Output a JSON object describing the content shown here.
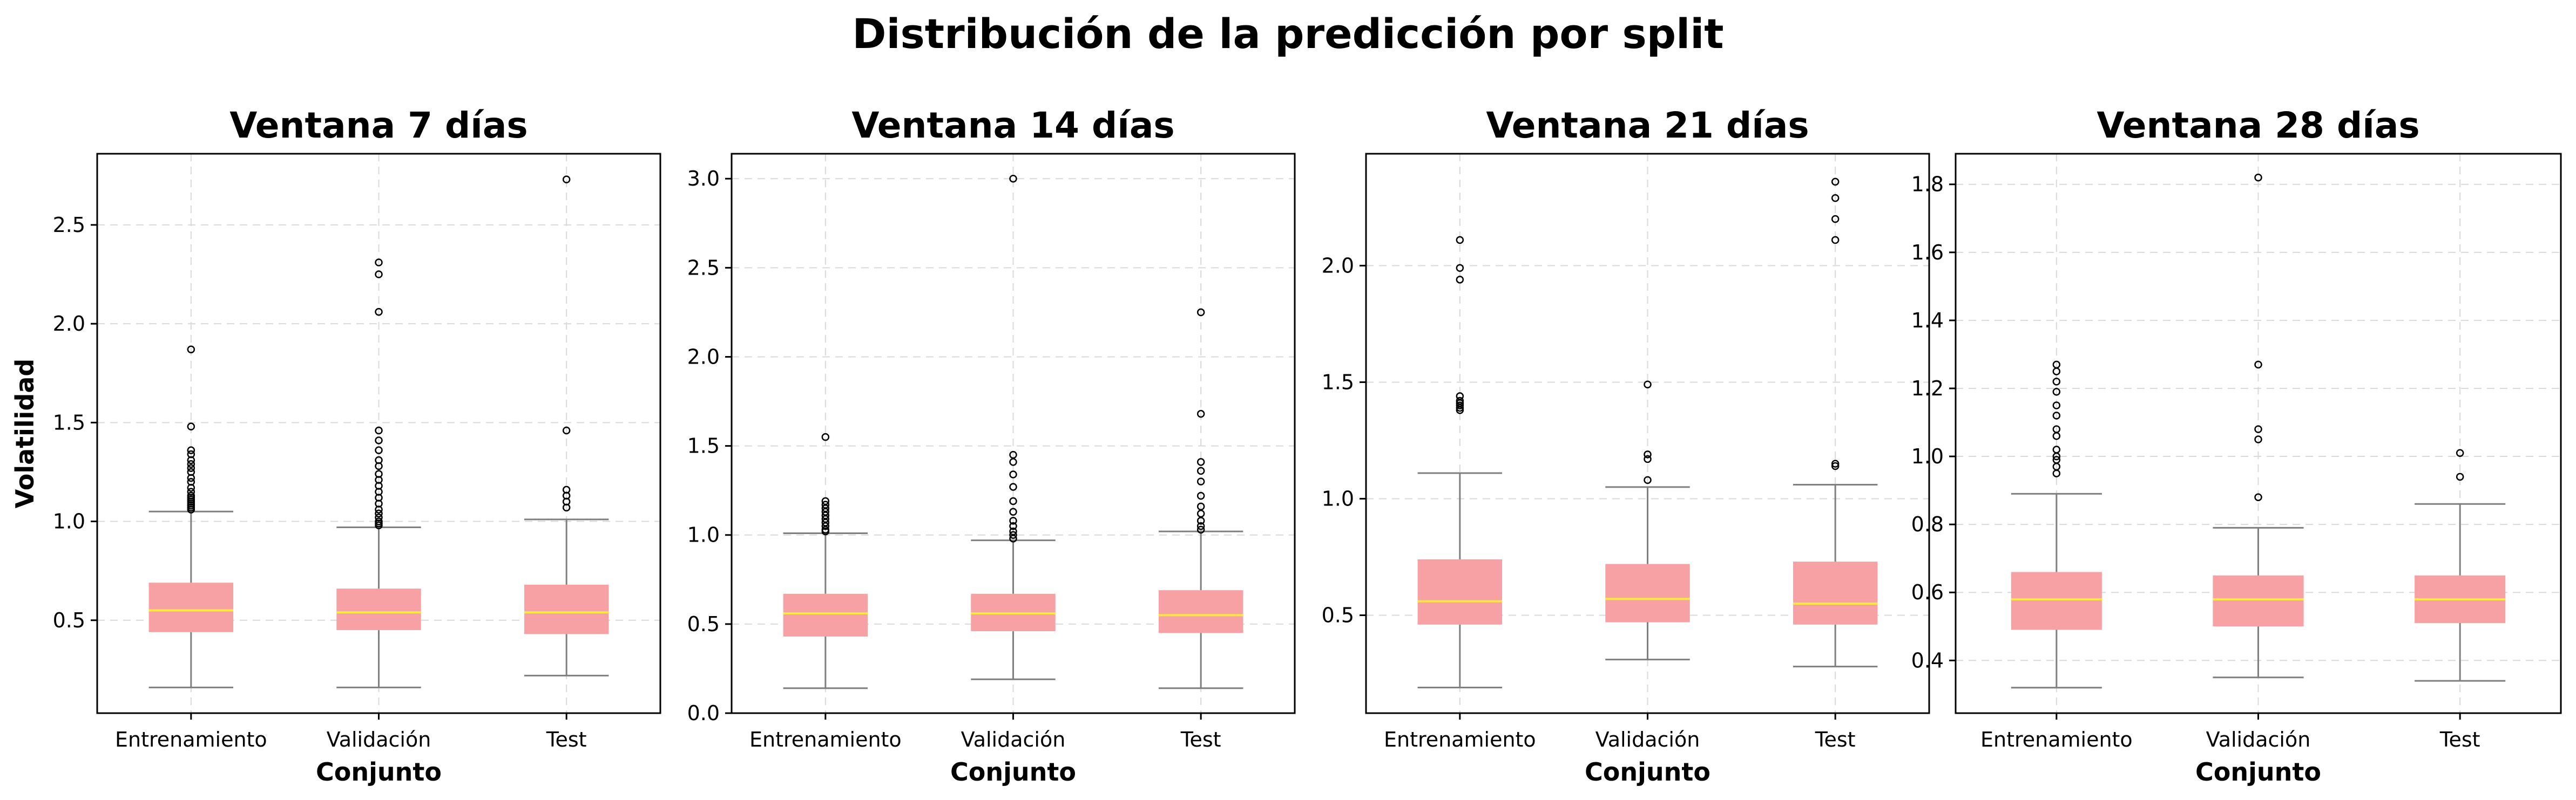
{
  "figure_title": "Distribución de la predicción por split",
  "chart_data": [
    {
      "type": "box",
      "title": "Ventana 7 días",
      "xlabel": "Conjunto",
      "ylabel": "Volatilidad",
      "categories": [
        "Entrenamiento",
        "Validación",
        "Test"
      ],
      "ylim": [
        0.03,
        2.86
      ],
      "yticks": [
        "0.5",
        "1.0",
        "1.5",
        "2.0",
        "2.5"
      ],
      "grid": true,
      "box_color": "#f7a1a4",
      "median_color": "#ffeb3b",
      "boxes": [
        {
          "whislo": 0.16,
          "q1": 0.44,
          "med": 0.55,
          "q3": 0.69,
          "whishi": 1.05,
          "fliers": [
            1.06,
            1.07,
            1.08,
            1.09,
            1.1,
            1.11,
            1.12,
            1.13,
            1.15,
            1.17,
            1.2,
            1.22,
            1.25,
            1.27,
            1.29,
            1.31,
            1.34,
            1.36,
            1.48,
            1.87
          ]
        },
        {
          "whislo": 0.16,
          "q1": 0.45,
          "med": 0.54,
          "q3": 0.66,
          "whishi": 0.97,
          "fliers": [
            0.98,
            0.99,
            1.0,
            1.02,
            1.04,
            1.06,
            1.09,
            1.12,
            1.15,
            1.18,
            1.21,
            1.24,
            1.28,
            1.31,
            1.36,
            1.41,
            1.46,
            2.06,
            2.25,
            2.31
          ]
        },
        {
          "whislo": 0.22,
          "q1": 0.43,
          "med": 0.54,
          "q3": 0.68,
          "whishi": 1.01,
          "fliers": [
            1.07,
            1.1,
            1.13,
            1.16,
            1.46,
            2.73
          ]
        }
      ]
    },
    {
      "type": "box",
      "title": "Ventana 14 días",
      "xlabel": "Conjunto",
      "ylabel": "",
      "categories": [
        "Entrenamiento",
        "Validación",
        "Test"
      ],
      "ylim": [
        0.0,
        3.14
      ],
      "yticks": [
        "0.0",
        "0.5",
        "1.0",
        "1.5",
        "2.0",
        "2.5",
        "3.0"
      ],
      "grid": true,
      "box_color": "#f7a1a4",
      "median_color": "#ffeb3b",
      "boxes": [
        {
          "whislo": 0.14,
          "q1": 0.43,
          "med": 0.56,
          "q3": 0.67,
          "whishi": 1.01,
          "fliers": [
            1.02,
            1.03,
            1.05,
            1.07,
            1.09,
            1.11,
            1.13,
            1.15,
            1.17,
            1.19,
            1.55
          ]
        },
        {
          "whislo": 0.19,
          "q1": 0.46,
          "med": 0.56,
          "q3": 0.67,
          "whishi": 0.97,
          "fliers": [
            0.98,
            1.0,
            1.02,
            1.05,
            1.08,
            1.13,
            1.19,
            1.27,
            1.34,
            1.41,
            1.45,
            3.0
          ]
        },
        {
          "whislo": 0.14,
          "q1": 0.45,
          "med": 0.55,
          "q3": 0.69,
          "whishi": 1.02,
          "fliers": [
            1.03,
            1.05,
            1.08,
            1.12,
            1.16,
            1.22,
            1.3,
            1.36,
            1.41,
            1.68,
            2.25
          ]
        }
      ]
    },
    {
      "type": "box",
      "title": "Ventana 21 días",
      "xlabel": "Conjunto",
      "ylabel": "",
      "categories": [
        "Entrenamiento",
        "Validación",
        "Test"
      ],
      "ylim": [
        0.08,
        2.48
      ],
      "yticks": [
        "0.5",
        "1.0",
        "1.5",
        "2.0"
      ],
      "grid": true,
      "box_color": "#f7a1a4",
      "median_color": "#ffeb3b",
      "boxes": [
        {
          "whislo": 0.19,
          "q1": 0.46,
          "med": 0.56,
          "q3": 0.74,
          "whishi": 1.11,
          "fliers": [
            1.38,
            1.39,
            1.4,
            1.41,
            1.42,
            1.44,
            1.94,
            1.99,
            2.11
          ]
        },
        {
          "whislo": 0.31,
          "q1": 0.47,
          "med": 0.57,
          "q3": 0.72,
          "whishi": 1.05,
          "fliers": [
            1.08,
            1.17,
            1.19,
            1.49
          ]
        },
        {
          "whislo": 0.28,
          "q1": 0.46,
          "med": 0.55,
          "q3": 0.73,
          "whishi": 1.06,
          "fliers": [
            1.14,
            1.15,
            2.11,
            2.2,
            2.29,
            2.36
          ]
        }
      ]
    },
    {
      "type": "box",
      "title": "Ventana 28 días",
      "xlabel": "Conjunto",
      "ylabel": "",
      "categories": [
        "Entrenamiento",
        "Validación",
        "Test"
      ],
      "ylim": [
        0.245,
        1.89
      ],
      "yticks": [
        "0.4",
        "0.6",
        "0.8",
        "1.0",
        "1.2",
        "1.4",
        "1.6",
        "1.8"
      ],
      "grid": true,
      "box_color": "#f7a1a4",
      "median_color": "#ffeb3b",
      "boxes": [
        {
          "whislo": 0.32,
          "q1": 0.49,
          "med": 0.58,
          "q3": 0.66,
          "whishi": 0.89,
          "fliers": [
            0.95,
            0.97,
            0.99,
            1.0,
            1.02,
            1.06,
            1.08,
            1.12,
            1.15,
            1.19,
            1.22,
            1.25,
            1.27
          ]
        },
        {
          "whislo": 0.35,
          "q1": 0.5,
          "med": 0.58,
          "q3": 0.65,
          "whishi": 0.79,
          "fliers": [
            0.88,
            1.05,
            1.08,
            1.27,
            1.82
          ]
        },
        {
          "whislo": 0.34,
          "q1": 0.51,
          "med": 0.58,
          "q3": 0.65,
          "whishi": 0.86,
          "fliers": [
            0.94,
            1.01
          ]
        }
      ]
    }
  ]
}
